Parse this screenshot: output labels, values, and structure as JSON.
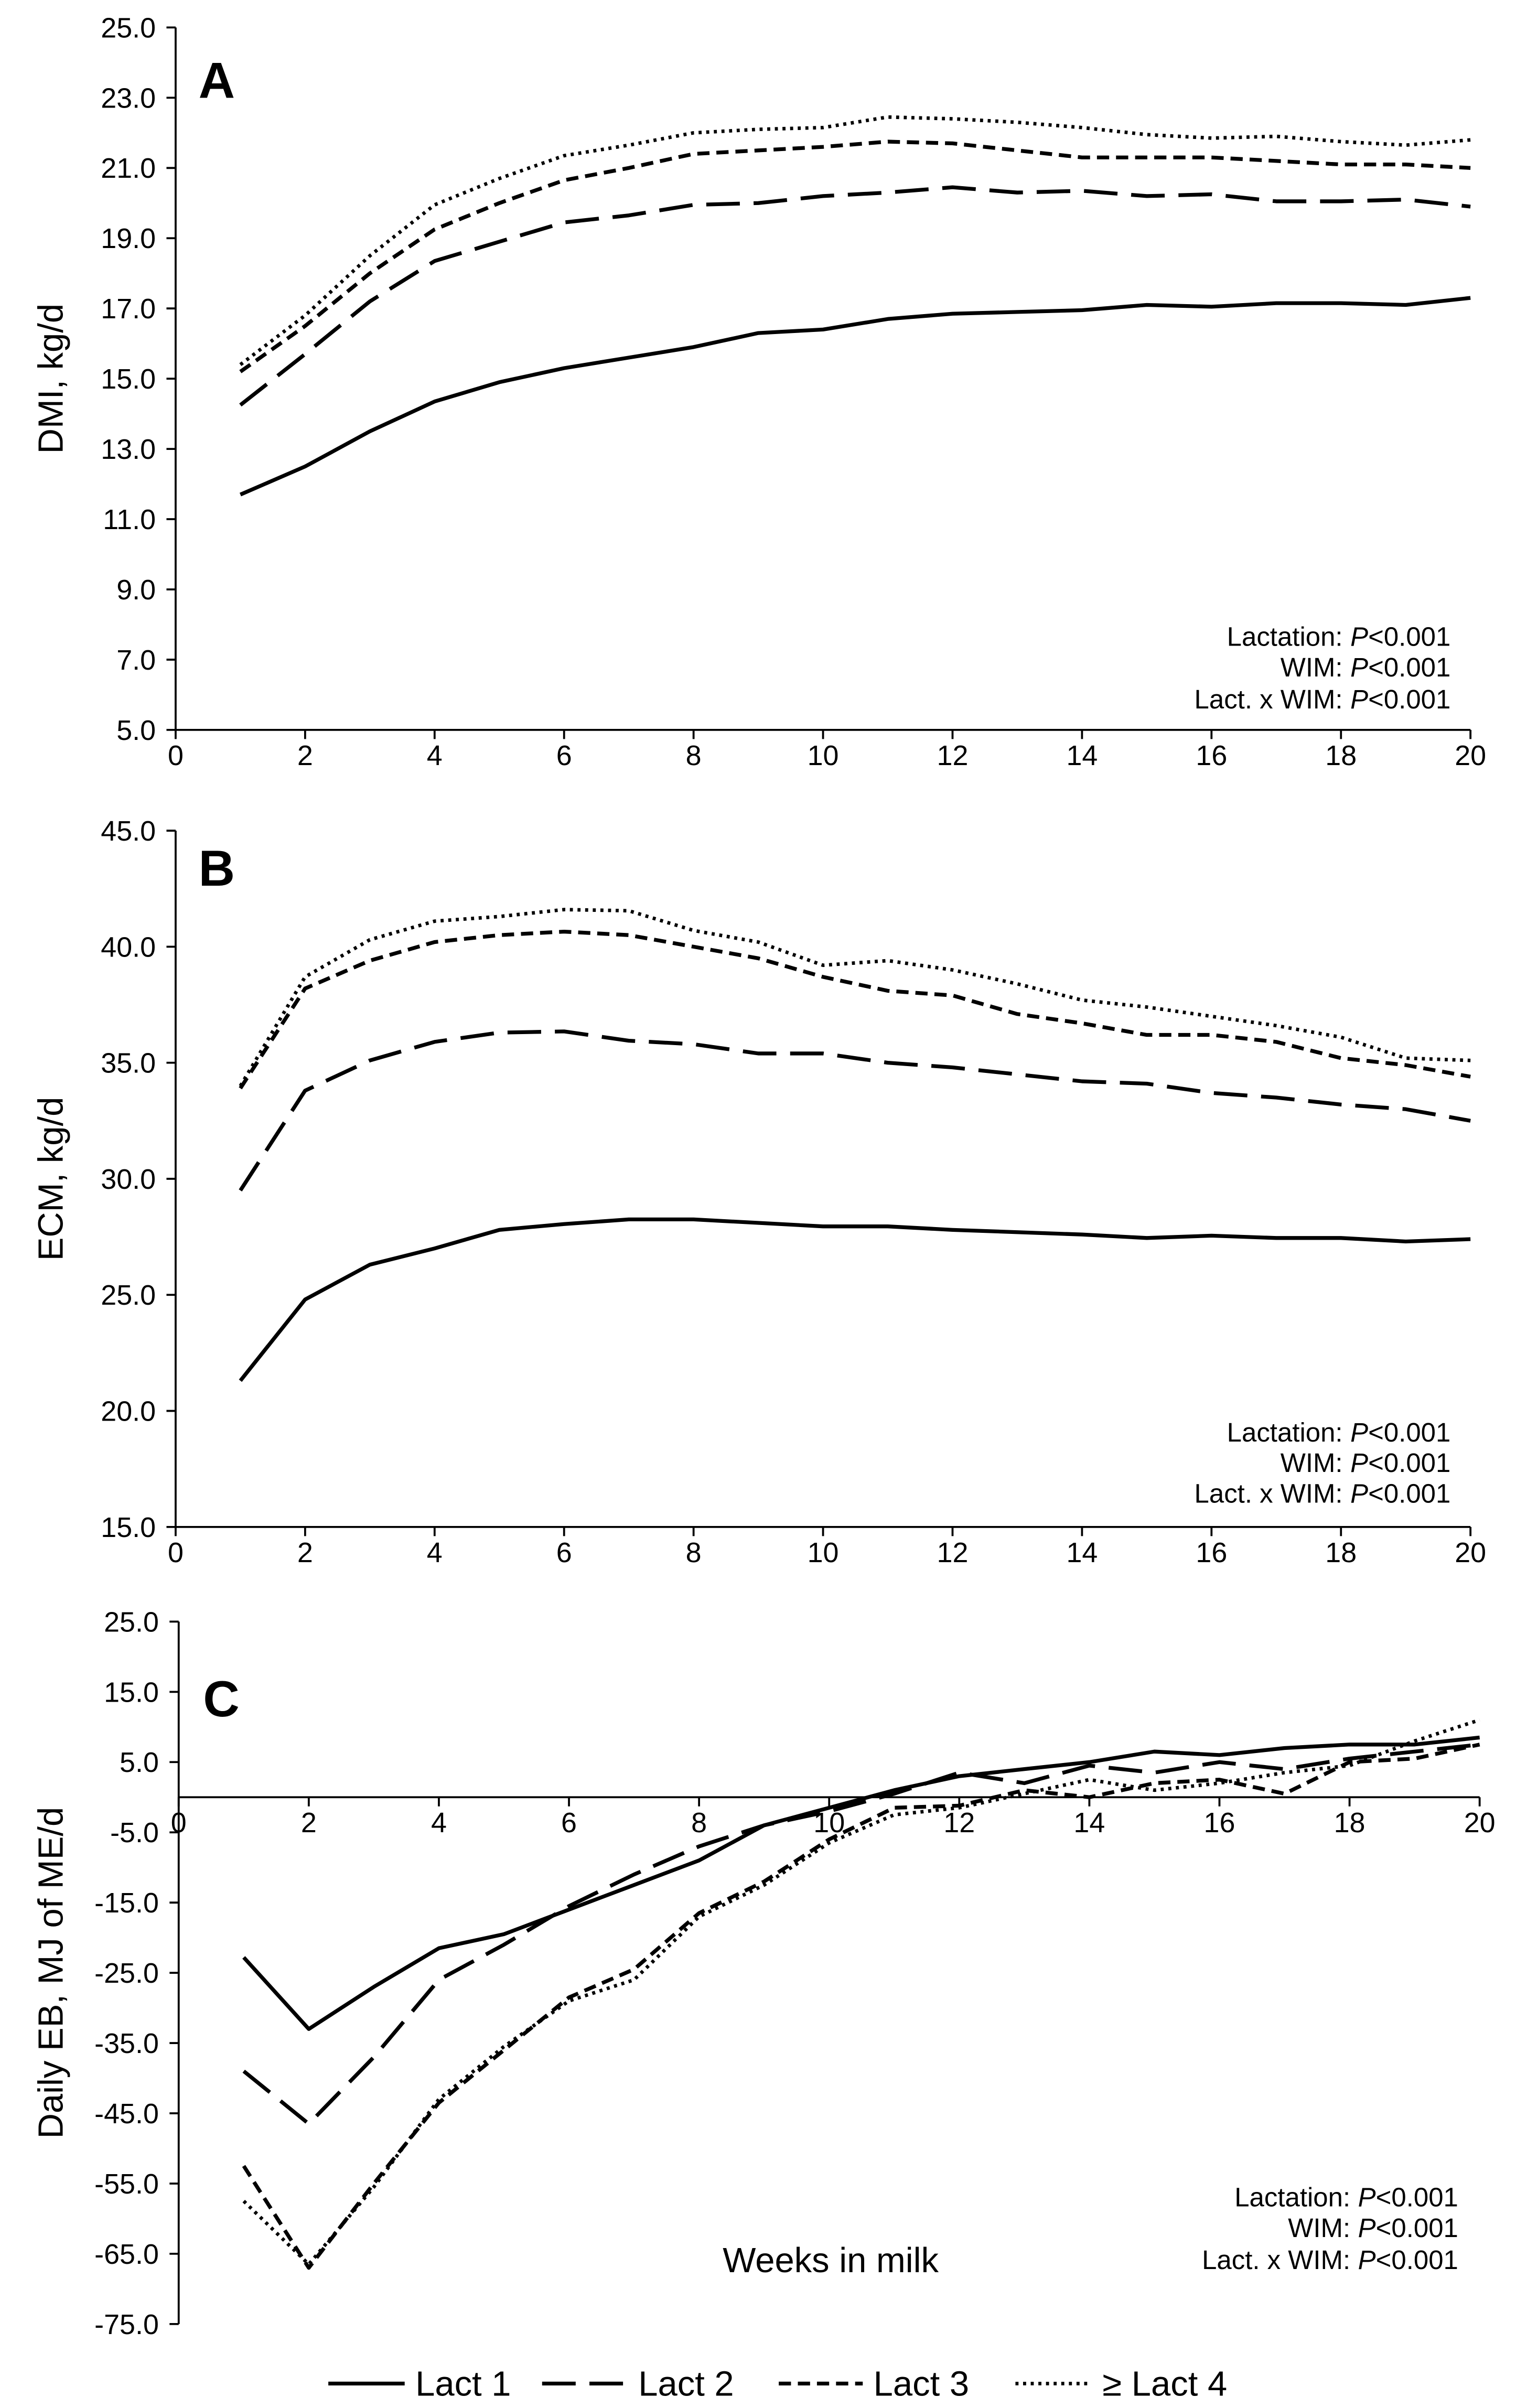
{
  "legend": {
    "items": [
      "Lact 1",
      "Lact 2",
      "Lact 3",
      "≥ Lact 4"
    ]
  },
  "chart_data": [
    {
      "type": "line",
      "panel_label": "A",
      "ylabel": "DMI, kg/d",
      "xlim": [
        0,
        20
      ],
      "ylim": [
        5,
        25
      ],
      "grid": false,
      "xticks": [
        0,
        2,
        4,
        6,
        8,
        10,
        12,
        14,
        16,
        18,
        20
      ],
      "xtick_labels": [
        "0",
        "2",
        "4",
        "6",
        "8",
        "10",
        "12",
        "14",
        "16",
        "18",
        "20"
      ],
      "yticks": [
        25,
        23,
        21,
        19,
        17,
        15,
        13,
        11,
        9,
        7,
        5
      ],
      "ytick_labels": [
        "25.0",
        "23.0",
        "21.0",
        "19.0",
        "17.0",
        "15.0",
        "13.0",
        "11.0",
        "9.0",
        "7.0",
        "5.0"
      ],
      "x": [
        1,
        2,
        3,
        4,
        5,
        6,
        7,
        8,
        9,
        10,
        11,
        12,
        13,
        14,
        15,
        16,
        17,
        18,
        19,
        20
      ],
      "series": [
        {
          "name": "Lact 1",
          "values": [
            11.7,
            12.5,
            13.5,
            14.35,
            14.9,
            15.3,
            15.6,
            15.9,
            16.3,
            16.4,
            16.7,
            16.85,
            16.9,
            16.95,
            17.1,
            17.05,
            17.15,
            17.15,
            17.1,
            17.3
          ]
        },
        {
          "name": "Lact 2",
          "values": [
            14.25,
            15.7,
            17.2,
            18.35,
            18.9,
            19.45,
            19.65,
            19.95,
            20.0,
            20.2,
            20.3,
            20.45,
            20.3,
            20.35,
            20.2,
            20.25,
            20.05,
            20.05,
            20.1,
            19.9
          ]
        },
        {
          "name": "Lact 3",
          "values": [
            15.2,
            16.5,
            18.0,
            19.25,
            20.0,
            20.65,
            21.0,
            21.4,
            21.5,
            21.6,
            21.75,
            21.7,
            21.5,
            21.3,
            21.3,
            21.3,
            21.2,
            21.1,
            21.1,
            21.0
          ]
        },
        {
          "name": "≥ Lact 4",
          "values": [
            15.4,
            16.8,
            18.5,
            19.95,
            20.7,
            21.35,
            21.65,
            22.0,
            22.1,
            22.15,
            22.45,
            22.4,
            22.3,
            22.15,
            21.95,
            21.85,
            21.9,
            21.75,
            21.65,
            21.8
          ]
        }
      ],
      "annotations": [
        {
          "label": "Lactation:",
          "symbol": "P",
          "value": "<0.001"
        },
        {
          "label": "WIM:",
          "symbol": "P",
          "value": "<0.001"
        },
        {
          "label": "Lact. x WIM:",
          "symbol": "P",
          "value": "<0.001"
        }
      ]
    },
    {
      "type": "line",
      "panel_label": "B",
      "ylabel": "ECM, kg/d",
      "xlim": [
        0,
        20
      ],
      "ylim": [
        15,
        45
      ],
      "grid": false,
      "xticks": [
        0,
        2,
        4,
        6,
        8,
        10,
        12,
        14,
        16,
        18,
        20
      ],
      "xtick_labels": [
        "0",
        "2",
        "4",
        "6",
        "8",
        "10",
        "12",
        "14",
        "16",
        "18",
        "20"
      ],
      "yticks": [
        45,
        40,
        35,
        30,
        25,
        20,
        15
      ],
      "ytick_labels": [
        "45.0",
        "40.0",
        "35.0",
        "30.0",
        "25.0",
        "20.0",
        "15.0"
      ],
      "x": [
        1,
        2,
        3,
        4,
        5,
        6,
        7,
        8,
        9,
        10,
        11,
        12,
        13,
        14,
        15,
        16,
        17,
        18,
        19,
        20
      ],
      "series": [
        {
          "name": "Lact 1",
          "values": [
            21.3,
            24.8,
            26.3,
            27.0,
            27.8,
            28.05,
            28.25,
            28.25,
            28.1,
            27.95,
            27.95,
            27.8,
            27.7,
            27.6,
            27.45,
            27.55,
            27.45,
            27.45,
            27.3,
            27.4
          ]
        },
        {
          "name": "Lact 2",
          "values": [
            29.5,
            33.8,
            35.1,
            35.9,
            36.3,
            36.35,
            35.95,
            35.8,
            35.4,
            35.4,
            35.0,
            34.8,
            34.5,
            34.2,
            34.1,
            33.7,
            33.5,
            33.2,
            33.0,
            32.5
          ]
        },
        {
          "name": "Lact 3",
          "values": [
            33.9,
            38.2,
            39.4,
            40.2,
            40.5,
            40.65,
            40.5,
            40.0,
            39.5,
            38.7,
            38.1,
            37.9,
            37.1,
            36.7,
            36.2,
            36.2,
            35.9,
            35.2,
            34.9,
            34.4
          ]
        },
        {
          "name": "≥ Lact 4",
          "values": [
            34.0,
            38.7,
            40.3,
            41.1,
            41.3,
            41.6,
            41.55,
            40.7,
            40.2,
            39.2,
            39.4,
            39.0,
            38.4,
            37.7,
            37.4,
            37.0,
            36.6,
            36.1,
            35.2,
            35.1
          ]
        }
      ],
      "annotations": [
        {
          "label": "Lactation:",
          "symbol": "P",
          "value": "<0.001"
        },
        {
          "label": "WIM:",
          "symbol": "P",
          "value": "<0.001"
        },
        {
          "label": "Lact. x WIM:",
          "symbol": "P",
          "value": "<0.001"
        }
      ]
    },
    {
      "type": "line",
      "panel_label": "C",
      "ylabel": "Daily EB, MJ of ME/d",
      "xlabel": "Weeks in milk",
      "xlim": [
        0,
        20
      ],
      "ylim": [
        -75,
        25
      ],
      "grid": false,
      "xticks": [
        0,
        2,
        4,
        6,
        8,
        10,
        12,
        14,
        16,
        18,
        20
      ],
      "xtick_labels": [
        "0",
        "2",
        "4",
        "6",
        "8",
        "10",
        "12",
        "14",
        "16",
        "18",
        "20"
      ],
      "yticks": [
        25,
        15,
        5,
        -5,
        -15,
        -25,
        -35,
        -45,
        -55,
        -65,
        -75
      ],
      "ytick_labels": [
        "25.0",
        "15.0",
        "5.0",
        "-5.0",
        "-15.0",
        "-25.0",
        "-35.0",
        "-45.0",
        "-55.0",
        "-65.0",
        "-75.0"
      ],
      "x": [
        1,
        2,
        3,
        4,
        5,
        6,
        7,
        8,
        9,
        10,
        11,
        12,
        13,
        14,
        15,
        16,
        17,
        18,
        19,
        20
      ],
      "series": [
        {
          "name": "Lact 1",
          "values": [
            -22.8,
            -33.0,
            -27.0,
            -21.5,
            -19.5,
            -16.0,
            -12.5,
            -9.0,
            -4.0,
            -1.5,
            1.0,
            3.0,
            4.0,
            5.0,
            6.5,
            6.0,
            7.0,
            7.5,
            7.5,
            8.5
          ]
        },
        {
          "name": "Lact 2",
          "values": [
            -39.0,
            -46.5,
            -37.0,
            -26.0,
            -21.0,
            -15.5,
            -11.0,
            -7.0,
            -4.0,
            -2.0,
            0.5,
            3.5,
            2.0,
            4.5,
            3.5,
            5.0,
            4.0,
            5.5,
            6.5,
            7.5
          ]
        },
        {
          "name": "Lact 3",
          "values": [
            -52.5,
            -67.0,
            -55.0,
            -43.5,
            -36.0,
            -28.5,
            -24.5,
            -16.5,
            -12.0,
            -6.0,
            -1.5,
            -1.2,
            1.0,
            0.0,
            2.0,
            2.5,
            0.5,
            5.0,
            5.5,
            7.5
          ]
        },
        {
          "name": "≥ Lact 4",
          "values": [
            -57.5,
            -66.5,
            -55.5,
            -43.0,
            -35.5,
            -29.0,
            -26.0,
            -17.0,
            -12.5,
            -6.5,
            -2.5,
            -1.5,
            0.5,
            2.5,
            1.0,
            2.0,
            3.5,
            4.5,
            8.0,
            11.0
          ]
        }
      ],
      "annotations": [
        {
          "label": "Lactation:",
          "symbol": "P",
          "value": "<0.001"
        },
        {
          "label": "WIM:",
          "symbol": "P",
          "value": "<0.001"
        },
        {
          "label": "Lact. x WIM:",
          "symbol": "P",
          "value": "<0.001"
        }
      ]
    }
  ]
}
